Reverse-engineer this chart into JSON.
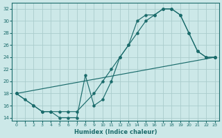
{
  "xlabel": "Humidex (Indice chaleur)",
  "bg_color": "#cce8e8",
  "grid_color": "#aacccc",
  "line_color": "#1a6b6b",
  "xlim": [
    -0.5,
    23.5
  ],
  "ylim": [
    13.5,
    33
  ],
  "xticks": [
    0,
    1,
    2,
    3,
    4,
    5,
    6,
    7,
    8,
    9,
    10,
    11,
    12,
    13,
    14,
    15,
    16,
    17,
    18,
    19,
    20,
    21,
    22,
    23
  ],
  "yticks": [
    14,
    16,
    18,
    20,
    22,
    24,
    26,
    28,
    30,
    32
  ],
  "line1_x": [
    0,
    1,
    2,
    3,
    4,
    5,
    6,
    7,
    8,
    9,
    10,
    11,
    12,
    13,
    14,
    15,
    16,
    17,
    18,
    19,
    20,
    21,
    22,
    23
  ],
  "line1_y": [
    18,
    17,
    16,
    15,
    15,
    14,
    14,
    14,
    21,
    16,
    17,
    20,
    24,
    26,
    30,
    31,
    31,
    32,
    32,
    31,
    28,
    25,
    24,
    24
  ],
  "line2_x": [
    0,
    2,
    3,
    4,
    5,
    6,
    7,
    9,
    10,
    11,
    12,
    13,
    14,
    15,
    16,
    17,
    18,
    19,
    20,
    21,
    22,
    23
  ],
  "line2_y": [
    18,
    16,
    15,
    15,
    15,
    15,
    15,
    18,
    20,
    22,
    24,
    26,
    28,
    30,
    31,
    32,
    32,
    31,
    28,
    25,
    24,
    24
  ],
  "line3_x": [
    0,
    23
  ],
  "line3_y": [
    18,
    24
  ]
}
